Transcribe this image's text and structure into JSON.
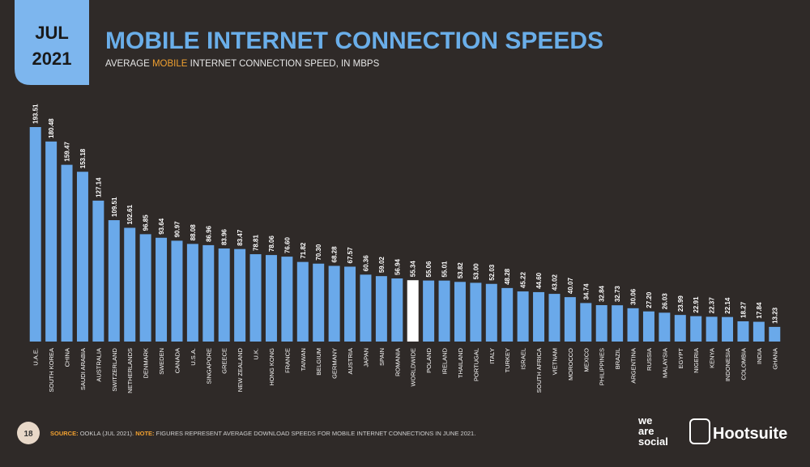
{
  "header": {
    "date_month": "JUL",
    "date_year": "2021"
  },
  "chart_data": {
    "type": "bar",
    "title": "MOBILE INTERNET CONNECTION SPEEDS",
    "subtitle_parts": [
      "AVERAGE",
      "MOBILE",
      "INTERNET CONNECTION SPEED, IN MBPS"
    ],
    "categories": [
      "U.A.E.",
      "SOUTH KOREA",
      "CHINA",
      "SAUDI ARABIA",
      "AUSTRALIA",
      "SWITZERLAND",
      "NETHERLANDS",
      "DENMARK",
      "SWEDEN",
      "CANADA",
      "U.S.A.",
      "SINGAPORE",
      "GREECE",
      "NEW ZEALAND",
      "U.K.",
      "HONG KONG",
      "FRANCE",
      "TAIWAN",
      "BELGIUM",
      "GERMANY",
      "AUSTRIA",
      "JAPAN",
      "SPAIN",
      "ROMANIA",
      "WORLDWIDE",
      "POLAND",
      "IRELAND",
      "THAILAND",
      "PORTUGAL",
      "ITALY",
      "TURKEY",
      "ISRAEL",
      "SOUTH AFRICA",
      "VIETNAM",
      "MOROCCO",
      "MEXICO",
      "PHILIPPINES",
      "BRAZIL",
      "ARGENTINA",
      "RUSSIA",
      "MALAYSIA",
      "EGYPT",
      "NIGERIA",
      "KENYA",
      "INDONESIA",
      "COLOMBIA",
      "INDIA",
      "GHANA"
    ],
    "values": [
      193.51,
      180.48,
      159.47,
      153.18,
      127.14,
      109.51,
      102.61,
      96.85,
      93.64,
      90.97,
      88.08,
      86.96,
      83.96,
      83.47,
      78.81,
      78.06,
      76.6,
      71.82,
      70.3,
      68.28,
      67.57,
      60.36,
      59.02,
      56.94,
      55.34,
      55.06,
      55.01,
      53.82,
      53.0,
      52.03,
      48.28,
      45.22,
      44.6,
      43.02,
      40.07,
      34.74,
      32.84,
      32.73,
      30.06,
      27.2,
      26.03,
      23.99,
      22.91,
      22.37,
      22.14,
      18.27,
      17.84,
      13.23
    ],
    "value_labels": [
      "193.51",
      "180.48",
      "159.47",
      "153.18",
      "127.14",
      "109.51",
      "102.61",
      "96.85",
      "93.64",
      "90.97",
      "88.08",
      "86.96",
      "83.96",
      "83.47",
      "78.81",
      "78.06",
      "76.60",
      "71.82",
      "70.30",
      "68.28",
      "67.57",
      "60.36",
      "59.02",
      "56.94",
      "55.34",
      "55.06",
      "55.01",
      "53.82",
      "53.00",
      "52.03",
      "48.28",
      "45.22",
      "44.60",
      "43.02",
      "40.07",
      "34.74",
      "32.84",
      "32.73",
      "30.06",
      "27.20",
      "26.03",
      "23.99",
      "22.91",
      "22.37",
      "22.14",
      "18.27",
      "17.84",
      "13.23"
    ],
    "color": "#6aa9ea",
    "colors": [
      "#6aa9ea",
      "#6aa9ea",
      "#6aa9ea",
      "#6aa9ea",
      "#6aa9ea",
      "#6aa9ea",
      "#6aa9ea",
      "#6aa9ea",
      "#6aa9ea",
      "#6aa9ea",
      "#6aa9ea",
      "#6aa9ea",
      "#6aa9ea",
      "#6aa9ea",
      "#6aa9ea",
      "#6aa9ea",
      "#6aa9ea",
      "#6aa9ea",
      "#6aa9ea",
      "#6aa9ea",
      "#6aa9ea",
      "#6aa9ea",
      "#6aa9ea",
      "#6aa9ea",
      "#ffffff",
      "#6aa9ea",
      "#6aa9ea",
      "#6aa9ea",
      "#6aa9ea",
      "#6aa9ea",
      "#6aa9ea",
      "#6aa9ea",
      "#6aa9ea",
      "#6aa9ea",
      "#6aa9ea",
      "#6aa9ea",
      "#6aa9ea",
      "#6aa9ea",
      "#6aa9ea",
      "#6aa9ea",
      "#6aa9ea",
      "#6aa9ea",
      "#6aa9ea",
      "#6aa9ea",
      "#6aa9ea",
      "#6aa9ea",
      "#6aa9ea",
      "#6aa9ea"
    ]
  },
  "footer": {
    "page_number": "18",
    "source_label": "SOURCE:",
    "source_text": "OOKLA (JUL 2021).",
    "note_label": "NOTE:",
    "note_text": "FIGURES REPRESENT AVERAGE DOWNLOAD SPEEDS FOR MOBILE INTERNET CONNECTIONS IN JUNE 2021.",
    "logo_we_are_social": [
      "we",
      "are",
      "social"
    ],
    "logo_hootsuite": "Hootsuite"
  }
}
